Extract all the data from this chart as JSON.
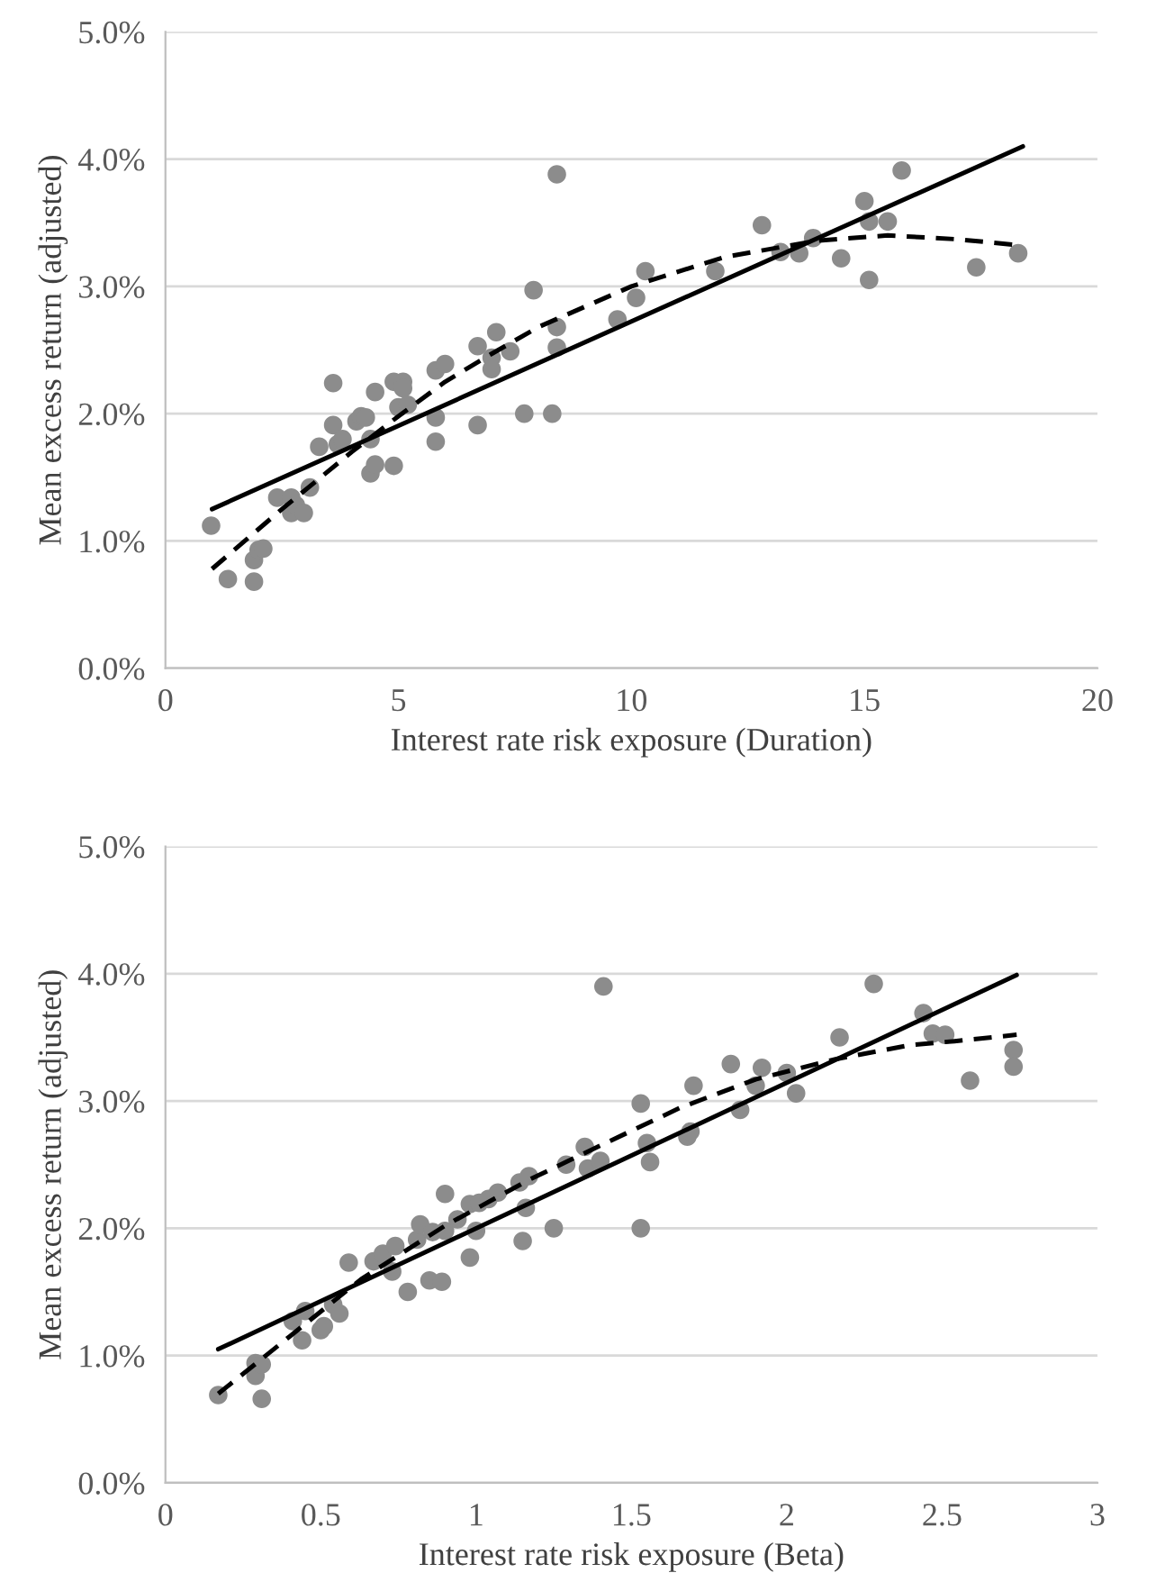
{
  "chart_data": [
    {
      "type": "scatter",
      "xlabel": "Interest rate risk exposure (Duration)",
      "ylabel": "Mean excess return (adjusted)",
      "xlim": [
        0,
        20
      ],
      "xticks": [
        0,
        5,
        10,
        15,
        20
      ],
      "ylim": [
        0,
        5
      ],
      "yticks": [
        {
          "value": 0,
          "label": "0.0%"
        },
        {
          "value": 1,
          "label": "1.0%"
        },
        {
          "value": 2,
          "label": "2.0%"
        },
        {
          "value": 3,
          "label": "3.0%"
        },
        {
          "value": 4,
          "label": "4.0%"
        },
        {
          "value": 5,
          "label": "5.0%"
        }
      ],
      "grid": "y",
      "legend": false,
      "series": [
        {
          "color": "#8c8c8c",
          "marker": "circle",
          "x": [
            0.98,
            1.34,
            1.9,
            2.0,
            1.9,
            2.1,
            2.4,
            2.7,
            2.7,
            2.8,
            2.97,
            3.1,
            3.3,
            3.6,
            3.6,
            3.7,
            3.8,
            4.1,
            4.2,
            4.3,
            4.4,
            4.4,
            4.5,
            4.5,
            4.9,
            5.0,
            4.9,
            5.1,
            5.1,
            5.2,
            5.8,
            5.8,
            5.8,
            6.0,
            6.7,
            6.7,
            7.0,
            7.0,
            7.1,
            7.4,
            7.7,
            7.9,
            8.3,
            8.4,
            8.4,
            8.4,
            9.7,
            10.1,
            10.3,
            11.8,
            12.8,
            13.2,
            13.6,
            13.9,
            14.5,
            15.0,
            15.1,
            15.1,
            15.5,
            15.8,
            17.4,
            18.3
          ],
          "values": [
            1.12,
            0.7,
            0.85,
            0.93,
            0.68,
            0.94,
            1.34,
            1.34,
            1.22,
            1.28,
            1.22,
            1.42,
            1.74,
            2.24,
            1.91,
            1.76,
            1.8,
            1.94,
            1.98,
            1.97,
            1.8,
            1.53,
            1.6,
            2.17,
            2.25,
            2.05,
            1.59,
            2.25,
            2.2,
            2.07,
            1.97,
            1.78,
            2.34,
            2.39,
            2.53,
            1.91,
            2.44,
            2.35,
            2.64,
            2.49,
            2.0,
            2.97,
            2.0,
            2.52,
            2.68,
            3.88,
            2.74,
            2.91,
            3.12,
            3.12,
            3.48,
            3.27,
            3.26,
            3.38,
            3.22,
            3.67,
            3.51,
            3.05,
            3.51,
            3.91,
            3.15,
            3.26
          ]
        },
        {
          "type": "line",
          "color": "#000000",
          "line_style": "solid",
          "marker": "none",
          "x": [
            1.0,
            18.4
          ],
          "values": [
            1.25,
            4.1
          ]
        },
        {
          "type": "line",
          "color": "#000000",
          "line_style": "dashed",
          "marker": "none",
          "x": [
            1.0,
            2.5,
            4,
            5,
            6,
            7,
            8,
            10,
            12,
            14,
            15.5,
            17,
            18.4
          ],
          "values": [
            0.78,
            1.25,
            1.7,
            1.98,
            2.25,
            2.47,
            2.68,
            3.0,
            3.23,
            3.36,
            3.4,
            3.37,
            3.32
          ]
        }
      ]
    },
    {
      "type": "scatter",
      "xlabel": "Interest rate risk exposure (Beta)",
      "ylabel": "Mean excess return (adjusted)",
      "xlim": [
        0,
        3
      ],
      "xticks": [
        0,
        0.5,
        1,
        1.5,
        2,
        2.5,
        3
      ],
      "ylim": [
        0,
        5
      ],
      "yticks": [
        {
          "value": 0,
          "label": "0.0%"
        },
        {
          "value": 1,
          "label": "1.0%"
        },
        {
          "value": 2,
          "label": "2.0%"
        },
        {
          "value": 3,
          "label": "3.0%"
        },
        {
          "value": 4,
          "label": "4.0%"
        },
        {
          "value": 5,
          "label": "5.0%"
        }
      ],
      "grid": "y",
      "legend": false,
      "series": [
        {
          "color": "#8c8c8c",
          "marker": "circle",
          "x": [
            0.17,
            0.31,
            0.29,
            0.29,
            0.31,
            0.41,
            0.44,
            0.45,
            0.5,
            0.51,
            0.54,
            0.56,
            0.59,
            0.67,
            0.7,
            0.73,
            0.74,
            0.78,
            0.81,
            0.82,
            0.85,
            0.89,
            0.86,
            0.9,
            0.9,
            0.94,
            0.98,
            0.98,
            1.01,
            1.0,
            1.04,
            1.07,
            1.14,
            1.15,
            1.16,
            1.17,
            1.25,
            1.29,
            1.35,
            1.36,
            1.4,
            1.41,
            1.53,
            1.55,
            1.56,
            1.53,
            1.68,
            1.69,
            1.7,
            1.82,
            1.85,
            1.9,
            1.92,
            2.0,
            2.03,
            2.17,
            2.28,
            2.44,
            2.47,
            2.51,
            2.59,
            2.73,
            2.73
          ],
          "values": [
            0.69,
            0.66,
            0.84,
            0.94,
            0.93,
            1.27,
            1.12,
            1.35,
            1.2,
            1.23,
            1.4,
            1.33,
            1.73,
            1.74,
            1.8,
            1.66,
            1.86,
            1.5,
            1.91,
            2.03,
            1.59,
            1.58,
            1.97,
            2.27,
            1.98,
            2.07,
            1.77,
            2.19,
            2.2,
            1.98,
            2.23,
            2.28,
            2.36,
            1.9,
            2.16,
            2.41,
            2.0,
            2.5,
            2.64,
            2.47,
            2.53,
            3.9,
            2.98,
            2.67,
            2.52,
            2.0,
            2.72,
            2.76,
            3.12,
            3.29,
            2.93,
            3.12,
            3.26,
            3.22,
            3.06,
            3.5,
            3.92,
            3.69,
            3.53,
            3.52,
            3.16,
            3.4,
            3.27
          ]
        },
        {
          "type": "line",
          "color": "#000000",
          "line_style": "solid",
          "marker": "none",
          "x": [
            0.17,
            2.74
          ],
          "values": [
            1.05,
            3.99
          ]
        },
        {
          "type": "line",
          "color": "#000000",
          "line_style": "dashed",
          "marker": "none",
          "x": [
            0.17,
            0.4,
            0.63,
            0.9,
            1.17,
            1.4,
            1.66,
            1.9,
            2.16,
            2.4,
            2.54,
            2.74
          ],
          "values": [
            0.7,
            1.15,
            1.6,
            2.02,
            2.38,
            2.65,
            2.95,
            3.17,
            3.33,
            3.44,
            3.47,
            3.52
          ]
        }
      ]
    }
  ]
}
